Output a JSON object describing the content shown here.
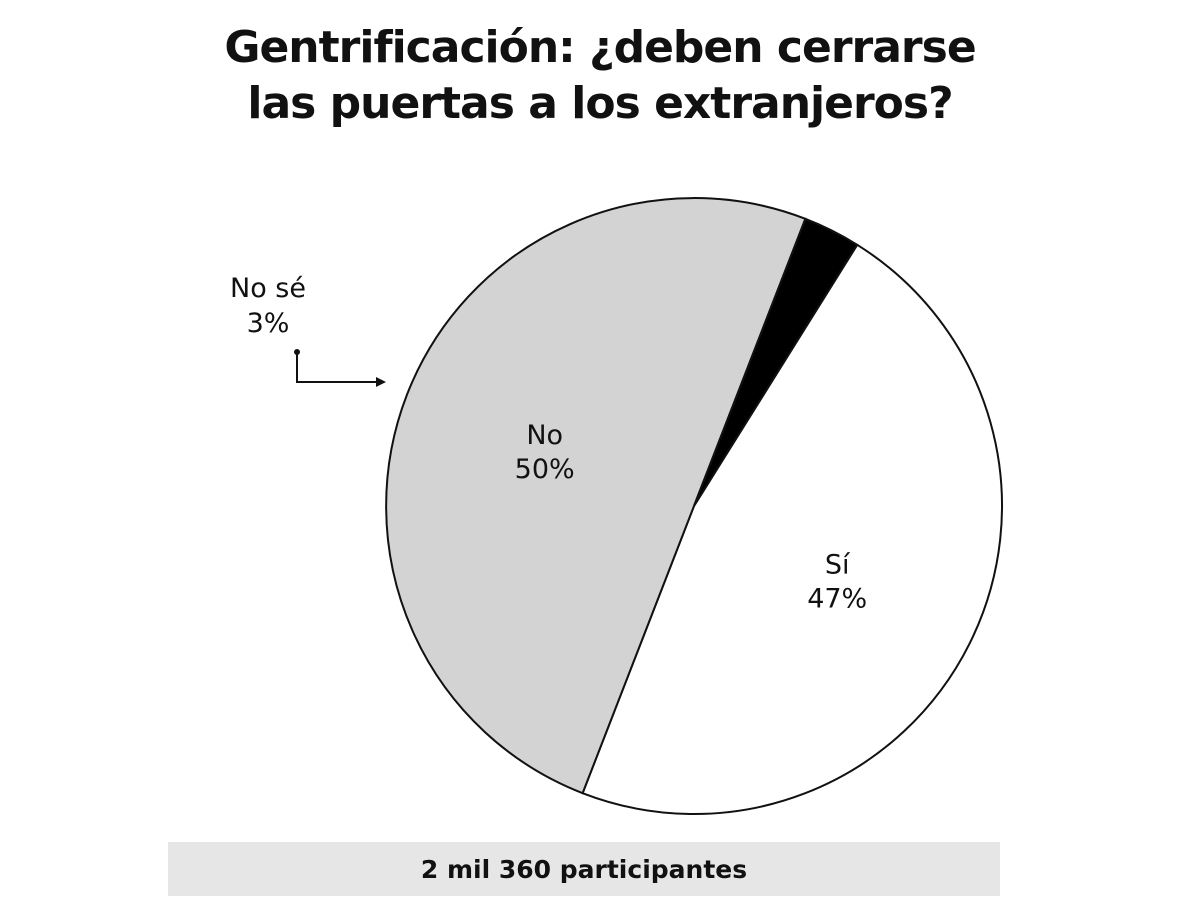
{
  "chart_data": {
    "type": "pie",
    "title_lines": [
      "Gentrificación: ¿deben cerrarse",
      "las puertas a los extranjeros?"
    ],
    "slices": [
      {
        "label": "Sí",
        "value": 47,
        "value_label": "47%",
        "color": "#ffffff"
      },
      {
        "label": "No",
        "value": 50,
        "value_label": "50%",
        "color": "#d3d3d3"
      },
      {
        "label": "No sé",
        "value": 3,
        "value_label": "3%",
        "color": "#000000"
      }
    ],
    "callout_label": "No sé",
    "footer": "2 mil 360 participantes"
  }
}
